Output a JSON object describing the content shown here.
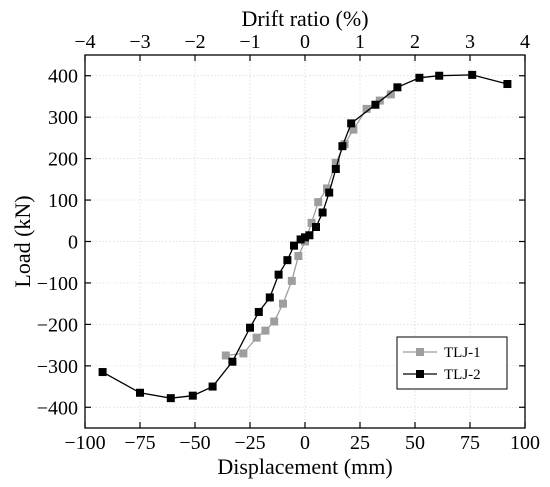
{
  "chart_data": {
    "type": "line",
    "xlabel": "Displacement (mm)",
    "ylabel": "Load (kN)",
    "x2label": "Drift ratio (%)",
    "xlim": [
      -100,
      100
    ],
    "ylim": [
      -450,
      450
    ],
    "x2lim": [
      -4,
      4
    ],
    "xticks": [
      "−100",
      "−75",
      "−50",
      "−25",
      "0",
      "25",
      "50",
      "75",
      "100"
    ],
    "xtick_values": [
      -100,
      -75,
      -50,
      -25,
      0,
      25,
      50,
      75,
      100
    ],
    "yticks": [
      "−400",
      "−300",
      "−200",
      "−100",
      "0",
      "100",
      "200",
      "300",
      "400"
    ],
    "ytick_values": [
      -400,
      -300,
      -200,
      -100,
      0,
      100,
      200,
      300,
      400
    ],
    "x2ticks": [
      "−4",
      "−3",
      "−2",
      "−1",
      "0",
      "1",
      "2",
      "3",
      "4"
    ],
    "x2tick_values": [
      -4,
      -3,
      -2,
      -1,
      0,
      1,
      2,
      3,
      4
    ],
    "grid": true,
    "legend_position": "bottom-right",
    "series": [
      {
        "name": "TLJ-1",
        "color": "#9e9e9e",
        "marker": "square",
        "x": [
          -36,
          -28,
          -22,
          -18,
          -14,
          -10,
          -6,
          -3,
          0,
          3,
          6,
          10,
          14,
          18,
          22,
          28,
          34,
          39
        ],
        "y": [
          -275,
          -270,
          -232,
          -215,
          -193,
          -150,
          -95,
          -35,
          0,
          45,
          95,
          128,
          190,
          235,
          270,
          320,
          340,
          355
        ]
      },
      {
        "name": "TLJ-2",
        "color": "#000000",
        "marker": "square",
        "x": [
          -92,
          -75,
          -61,
          -51,
          -42,
          -33,
          -25,
          -21,
          -16,
          -12,
          -8,
          -5,
          -2,
          0,
          2,
          5,
          8,
          11,
          14,
          17,
          21,
          32,
          42,
          52,
          61,
          76,
          92
        ],
        "y": [
          -315,
          -365,
          -378,
          -372,
          -350,
          -290,
          -208,
          -170,
          -135,
          -80,
          -45,
          -10,
          5,
          10,
          15,
          35,
          70,
          118,
          175,
          230,
          285,
          330,
          372,
          395,
          400,
          402,
          380
        ]
      }
    ]
  }
}
